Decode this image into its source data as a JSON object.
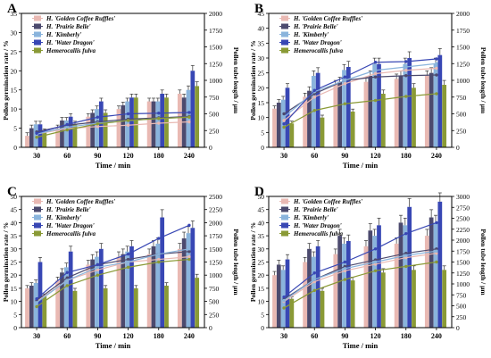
{
  "figure": {
    "series_names": [
      "H. 'Golden Coffee Ruffles'",
      "H. 'Prairie Belle'",
      "H. 'Kimberly'",
      "H. 'Water Dragon'",
      "Hemerocallis fulva"
    ],
    "series_colors": [
      "#e9b9b3",
      "#4c4a6e",
      "#8ab4dc",
      "#3847b4",
      "#8a9a36"
    ]
  },
  "chart_data": [
    {
      "panel": "A",
      "type": "bar+line",
      "categories": [
        "30",
        "60",
        "90",
        "120",
        "180",
        "240"
      ],
      "xlabel": "Time / min",
      "ylabel": "Pollen germination rate / %",
      "y2label": "Pollen tube length / μm",
      "ylim": [
        0,
        35
      ],
      "y2lim": [
        0,
        2000
      ],
      "yticks": [
        0,
        5,
        10,
        15,
        20,
        25,
        30,
        35
      ],
      "y2ticks": [
        0,
        250,
        500,
        750,
        1000,
        1250,
        1500,
        1750,
        2000
      ],
      "legend": "top-left",
      "series": [
        {
          "name": "H. 'Golden Coffee Ruffles'",
          "bars": [
            3,
            5,
            8,
            10,
            12,
            14
          ],
          "line": [
            200,
            280,
            310,
            330,
            360,
            380
          ]
        },
        {
          "name": "H. 'Prairie Belle'",
          "bars": [
            5,
            7,
            9,
            11,
            12,
            13
          ],
          "line": [
            230,
            330,
            380,
            420,
            440,
            460
          ]
        },
        {
          "name": "H. 'Kimberly'",
          "bars": [
            6,
            7,
            10,
            12,
            12,
            15
          ],
          "line": [
            200,
            300,
            360,
            400,
            430,
            450
          ]
        },
        {
          "name": "H. 'Water Dragon'",
          "bars": [
            6,
            8,
            12,
            13,
            14,
            20
          ],
          "line": [
            210,
            340,
            450,
            500,
            510,
            520
          ]
        },
        {
          "name": "Hemerocallis fulva",
          "bars": [
            4,
            6,
            9,
            13,
            13,
            16
          ],
          "line": [
            150,
            260,
            350,
            400,
            430,
            450
          ]
        }
      ]
    },
    {
      "panel": "B",
      "type": "bar+line",
      "categories": [
        "30",
        "60",
        "90",
        "120",
        "180",
        "240"
      ],
      "xlabel": "Time / min",
      "ylabel": "Pollen germination rate / %",
      "y2label": "Pollen tube length / μm",
      "ylim": [
        0,
        45
      ],
      "y2lim": [
        0,
        2000
      ],
      "yticks": [
        0,
        5,
        10,
        15,
        20,
        25,
        30,
        35,
        40,
        45
      ],
      "y2ticks": [
        0,
        250,
        500,
        750,
        1000,
        1250,
        1500,
        1750,
        2000
      ],
      "legend": "top-left",
      "series": [
        {
          "name": "H. 'Golden Coffee Ruffles'",
          "bars": [
            13,
            17,
            21,
            22,
            23,
            24
          ],
          "line": [
            400,
            750,
            950,
            1100,
            1150,
            1180
          ]
        },
        {
          "name": "H. 'Prairie Belle'",
          "bars": [
            15,
            19,
            22,
            24,
            24,
            25
          ],
          "line": [
            500,
            800,
            1000,
            1050,
            1070,
            1080
          ]
        },
        {
          "name": "H. 'Kimberly'",
          "bars": [
            16,
            24,
            26,
            28,
            28,
            28
          ],
          "line": [
            450,
            830,
            1000,
            1150,
            1200,
            1250
          ]
        },
        {
          "name": "H. 'Water Dragon'",
          "bars": [
            20,
            25,
            27,
            28,
            30,
            31
          ],
          "line": [
            350,
            850,
            1050,
            1270,
            1280,
            1320
          ]
        },
        {
          "name": "Hemerocallis fulva",
          "bars": [
            8,
            10,
            12,
            18,
            20,
            21
          ],
          "line": [
            300,
            550,
            650,
            700,
            760,
            800
          ]
        }
      ]
    },
    {
      "panel": "C",
      "type": "bar+line",
      "categories": [
        "30",
        "60",
        "90",
        "120",
        "180",
        "240"
      ],
      "xlabel": "Time / min",
      "ylabel": "Pollen germination rate / %",
      "y2label": "Pollen tube length / μm",
      "ylim": [
        0,
        50
      ],
      "y2lim": [
        0,
        2500
      ],
      "yticks": [
        0,
        5,
        10,
        15,
        20,
        25,
        30,
        35,
        40,
        45,
        50
      ],
      "y2ticks": [
        0,
        250,
        500,
        750,
        1000,
        1250,
        1500,
        1750,
        2000,
        2250,
        2500
      ],
      "legend": "top-left",
      "series": [
        {
          "name": "H. 'Golden Coffee Ruffles'",
          "bars": [
            15,
            18,
            24,
            27,
            28,
            30
          ],
          "line": [
            500,
            900,
            1100,
            1250,
            1300,
            1350
          ]
        },
        {
          "name": "H. 'Prairie Belle'",
          "bars": [
            16,
            21,
            26,
            28,
            31,
            34
          ],
          "line": [
            520,
            950,
            1200,
            1300,
            1400,
            1450
          ]
        },
        {
          "name": "H. 'Kimberly'",
          "bars": [
            17,
            23,
            27,
            29,
            32,
            36
          ],
          "line": [
            480,
            900,
            1150,
            1250,
            1400,
            1500
          ]
        },
        {
          "name": "H. 'Water Dragon'",
          "bars": [
            25,
            29,
            30,
            31,
            42,
            38
          ],
          "line": [
            550,
            1050,
            1200,
            1400,
            1700,
            1950
          ]
        },
        {
          "name": "Hemerocallis fulva",
          "bars": [
            12,
            14,
            15,
            15,
            16,
            19
          ],
          "line": [
            400,
            800,
            1000,
            1150,
            1250,
            1300
          ]
        }
      ]
    },
    {
      "panel": "D",
      "type": "bar+line",
      "categories": [
        "30",
        "60",
        "90",
        "120",
        "180",
        "240"
      ],
      "xlabel": "Time / min",
      "ylabel": "Pollen germination rate / %",
      "y2label": "Pollen tube length / μm",
      "ylim": [
        0,
        50
      ],
      "y2lim": [
        0,
        3000
      ],
      "yticks": [
        0,
        5,
        10,
        15,
        20,
        25,
        30,
        35,
        40,
        45,
        50
      ],
      "y2ticks": [
        0,
        250,
        500,
        750,
        1000,
        1250,
        1500,
        1750,
        2000,
        2250,
        2500,
        2750,
        3000
      ],
      "legend": "top-left",
      "series": [
        {
          "name": "H. 'Golden Coffee Ruffles'",
          "bars": [
            20,
            25,
            28,
            31,
            32,
            35
          ],
          "line": [
            600,
            1050,
            1300,
            1450,
            1600,
            1700
          ]
        },
        {
          "name": "H. 'Prairie Belle'",
          "bars": [
            24,
            30,
            35,
            37,
            40,
            42
          ],
          "line": [
            650,
            1100,
            1400,
            1550,
            1700,
            1800
          ]
        },
        {
          "name": "H. 'Kimberly'",
          "bars": [
            22,
            27,
            32,
            35,
            39,
            40
          ],
          "line": [
            620,
            1100,
            1350,
            1500,
            1650,
            1750
          ]
        },
        {
          "name": "H. 'Water Dragon'",
          "bars": [
            26,
            31,
            33,
            39,
            46,
            48
          ],
          "line": [
            700,
            1250,
            1500,
            1800,
            2150,
            2400
          ]
        },
        {
          "name": "Hemerocallis fulva",
          "bars": [
            11,
            14,
            18,
            21,
            22,
            22
          ],
          "line": [
            450,
            850,
            1100,
            1300,
            1400,
            1500
          ]
        }
      ]
    }
  ]
}
